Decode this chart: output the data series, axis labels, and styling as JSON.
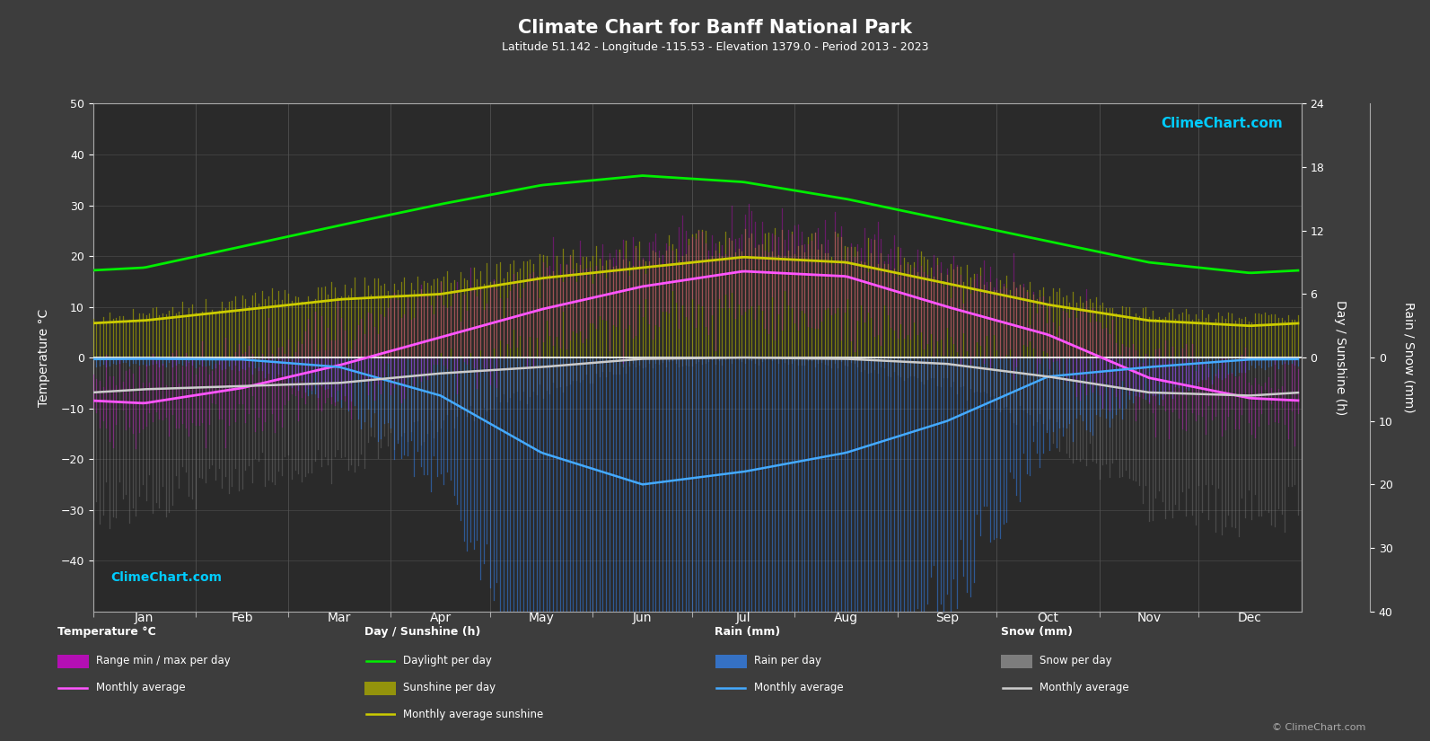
{
  "title": "Climate Chart for Banff National Park",
  "subtitle": "Latitude 51.142 - Longitude -115.53 - Elevation 1379.0 - Period 2013 - 2023",
  "background_color": "#3d3d3d",
  "plot_bg_color": "#2a2a2a",
  "months": [
    "Jan",
    "Feb",
    "Mar",
    "Apr",
    "May",
    "Jun",
    "Jul",
    "Aug",
    "Sep",
    "Oct",
    "Nov",
    "Dec"
  ],
  "temp_max_avg": [
    -3.5,
    0.2,
    5.5,
    11.0,
    16.5,
    21.0,
    24.5,
    23.5,
    17.5,
    11.0,
    1.5,
    -2.5
  ],
  "temp_min_avg": [
    -14.0,
    -11.5,
    -7.0,
    -2.5,
    2.5,
    7.0,
    9.5,
    8.5,
    3.5,
    -1.5,
    -9.5,
    -13.0
  ],
  "temp_monthly_avg": [
    -9.0,
    -6.0,
    -1.5,
    4.0,
    9.5,
    14.0,
    17.0,
    16.0,
    10.0,
    4.5,
    -4.0,
    -8.0
  ],
  "daylight": [
    8.5,
    10.5,
    12.5,
    14.5,
    16.3,
    17.2,
    16.6,
    15.0,
    13.0,
    11.0,
    9.0,
    8.0
  ],
  "sunshine_avg": [
    3.5,
    4.5,
    5.5,
    6.0,
    7.5,
    8.5,
    9.5,
    9.0,
    7.0,
    5.0,
    3.5,
    3.0
  ],
  "rain_mm": [
    0.5,
    1.0,
    5.0,
    15.0,
    45.0,
    55.0,
    55.0,
    45.0,
    30.0,
    10.0,
    5.0,
    1.0
  ],
  "snow_mm": [
    18.0,
    15.0,
    14.0,
    8.0,
    4.0,
    0.5,
    0.0,
    0.5,
    3.0,
    9.0,
    18.0,
    20.0
  ],
  "rain_monthly_avg": [
    0.2,
    0.3,
    1.5,
    6.0,
    15.0,
    20.0,
    18.0,
    15.0,
    10.0,
    3.0,
    1.5,
    0.3
  ],
  "snow_monthly_avg": [
    5.0,
    4.5,
    4.0,
    2.5,
    1.5,
    0.2,
    0.0,
    0.2,
    1.0,
    3.0,
    5.5,
    6.0
  ],
  "color_temp_range": "#dd00dd",
  "color_temp_avg": "#ff66ff",
  "color_daylight": "#00ee00",
  "color_sunshine": "#aaaa00",
  "color_sunshine_avg": "#cccc00",
  "color_rain": "#3388ff",
  "color_rain_avg": "#44aaff",
  "color_snow": "#999999",
  "color_snow_avg": "#cccccc",
  "color_zero_line": "#ffffff",
  "grid_color": "#555555",
  "text_color": "#ffffff",
  "axis_color": "#aaaaaa",
  "temp_scale": 1.25,
  "rain_scale": 1.25,
  "days_per_month": [
    31,
    28,
    31,
    30,
    31,
    30,
    31,
    31,
    30,
    31,
    30,
    31
  ]
}
